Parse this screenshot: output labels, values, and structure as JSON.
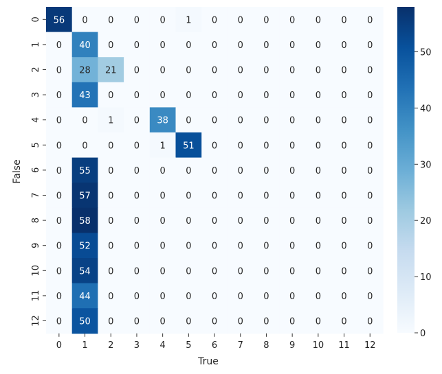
{
  "chart_data": {
    "type": "heatmap",
    "title": "",
    "xlabel": "True",
    "ylabel": "False",
    "x_categories": [
      "0",
      "1",
      "2",
      "3",
      "4",
      "5",
      "6",
      "7",
      "8",
      "9",
      "10",
      "11",
      "12"
    ],
    "y_categories": [
      "0",
      "1",
      "2",
      "3",
      "4",
      "5",
      "6",
      "7",
      "8",
      "9",
      "10",
      "11",
      "12"
    ],
    "values": [
      [
        56,
        0,
        0,
        0,
        0,
        1,
        0,
        0,
        0,
        0,
        0,
        0,
        0
      ],
      [
        0,
        40,
        0,
        0,
        0,
        0,
        0,
        0,
        0,
        0,
        0,
        0,
        0
      ],
      [
        0,
        28,
        21,
        0,
        0,
        0,
        0,
        0,
        0,
        0,
        0,
        0,
        0
      ],
      [
        0,
        43,
        0,
        0,
        0,
        0,
        0,
        0,
        0,
        0,
        0,
        0,
        0
      ],
      [
        0,
        0,
        1,
        0,
        38,
        0,
        0,
        0,
        0,
        0,
        0,
        0,
        0
      ],
      [
        0,
        0,
        0,
        0,
        1,
        51,
        0,
        0,
        0,
        0,
        0,
        0,
        0
      ],
      [
        0,
        55,
        0,
        0,
        0,
        0,
        0,
        0,
        0,
        0,
        0,
        0,
        0
      ],
      [
        0,
        57,
        0,
        0,
        0,
        0,
        0,
        0,
        0,
        0,
        0,
        0,
        0
      ],
      [
        0,
        58,
        0,
        0,
        0,
        0,
        0,
        0,
        0,
        0,
        0,
        0,
        0
      ],
      [
        0,
        52,
        0,
        0,
        0,
        0,
        0,
        0,
        0,
        0,
        0,
        0,
        0
      ],
      [
        0,
        54,
        0,
        0,
        0,
        0,
        0,
        0,
        0,
        0,
        0,
        0,
        0
      ],
      [
        0,
        44,
        0,
        0,
        0,
        0,
        0,
        0,
        0,
        0,
        0,
        0,
        0
      ],
      [
        0,
        50,
        0,
        0,
        0,
        0,
        0,
        0,
        0,
        0,
        0,
        0,
        0
      ]
    ],
    "annotated": true,
    "colormap": "Blues",
    "colormap_stops": [
      "#f7fbff",
      "#deebf7",
      "#c6dbef",
      "#9ecae1",
      "#6baed6",
      "#4292c6",
      "#2171b5",
      "#08519c",
      "#08306b"
    ],
    "colorbar": {
      "range": [
        0,
        58
      ],
      "ticks": [
        "0",
        "10",
        "20",
        "30",
        "40",
        "50"
      ]
    },
    "legend": "colorbar-right",
    "grid": false
  }
}
